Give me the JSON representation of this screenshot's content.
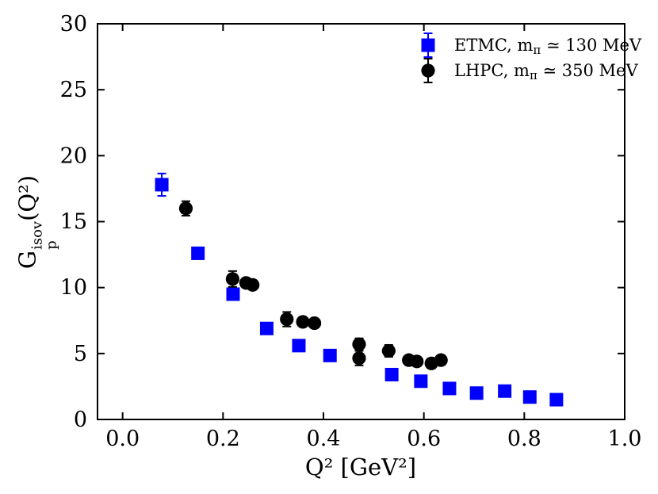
{
  "chart_data": {
    "type": "scatter",
    "title": "",
    "xlabel": "Q² [GeV²]",
    "ylabel": {
      "base": "G",
      "sup": "isov",
      "sub": "p",
      "rest": "(Q²)"
    },
    "xlim": [
      -0.05,
      1.0
    ],
    "ylim": [
      0,
      30
    ],
    "x_ticks": [
      0.0,
      0.2,
      0.4,
      0.6,
      0.8,
      1.0
    ],
    "x_tick_labels": [
      "0.0",
      "0.2",
      "0.4",
      "0.6",
      "0.8",
      "1.0"
    ],
    "y_ticks": [
      0,
      5,
      10,
      15,
      20,
      25,
      30
    ],
    "y_tick_labels": [
      "0",
      "5",
      "10",
      "15",
      "20",
      "25",
      "30"
    ],
    "grid": false,
    "legend_position": "upper right",
    "series": [
      {
        "name": "ETMC, mπ ≃ 130 MeV",
        "name_parts": {
          "pre": "ETMC, m",
          "sub": "π",
          "post": " ≃ 130 MeV"
        },
        "marker": "square",
        "color": "#0000ff",
        "points": [
          [
            0.078,
            17.8,
            0.85
          ],
          [
            0.15,
            12.6,
            0.25
          ],
          [
            0.22,
            9.5,
            0.25
          ],
          [
            0.287,
            6.9,
            0.2
          ],
          [
            0.351,
            5.6,
            0.2
          ],
          [
            0.413,
            4.85,
            0.2
          ],
          [
            0.536,
            3.4,
            0.2
          ],
          [
            0.594,
            2.9,
            0.2
          ],
          [
            0.651,
            2.35,
            0.2
          ],
          [
            0.705,
            2.0,
            0.2
          ],
          [
            0.761,
            2.15,
            0.2
          ],
          [
            0.811,
            1.7,
            0.2
          ],
          [
            0.864,
            1.5,
            0.2
          ]
        ]
      },
      {
        "name": "LHPC, mπ ≃ 350 MeV",
        "name_parts": {
          "pre": "LHPC, m",
          "sub": "π",
          "post": " ≃ 350 MeV"
        },
        "marker": "circle",
        "color": "#000000",
        "points": [
          [
            0.126,
            16.0,
            0.55
          ],
          [
            0.219,
            10.65,
            0.6
          ],
          [
            0.246,
            10.35,
            0.3
          ],
          [
            0.259,
            10.2,
            0.3
          ],
          [
            0.327,
            7.6,
            0.55
          ],
          [
            0.359,
            7.4,
            0.3
          ],
          [
            0.382,
            7.3,
            0.3
          ],
          [
            0.471,
            5.7,
            0.45
          ],
          [
            0.471,
            4.65,
            0.55
          ],
          [
            0.53,
            5.2,
            0.45
          ],
          [
            0.57,
            4.5,
            0.3
          ],
          [
            0.586,
            4.4,
            0.3
          ],
          [
            0.615,
            4.25,
            0.35
          ],
          [
            0.634,
            4.5,
            0.35
          ]
        ]
      }
    ],
    "frame_color": "#000000"
  }
}
